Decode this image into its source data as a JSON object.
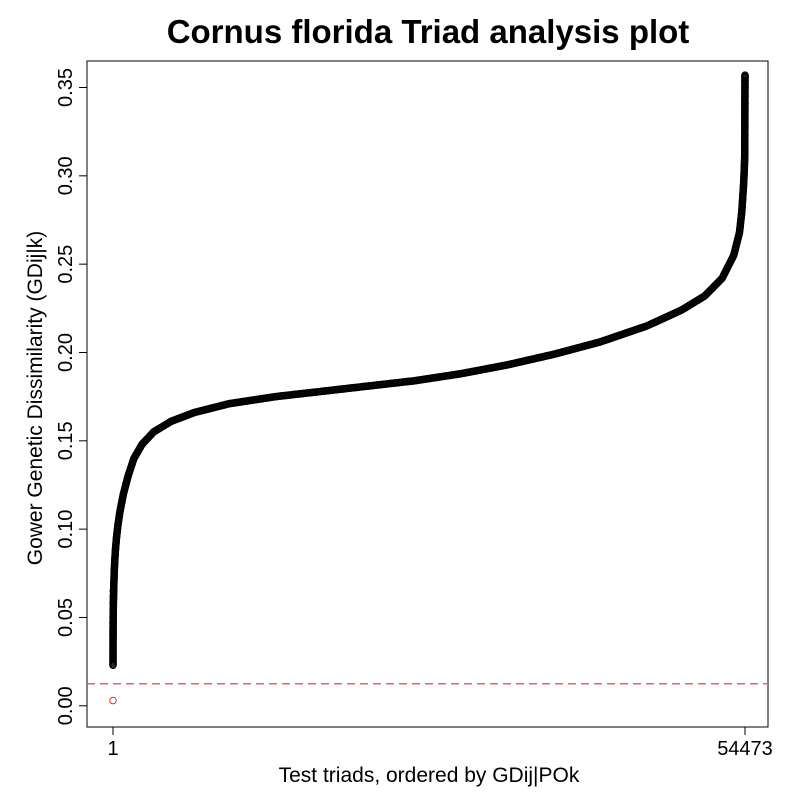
{
  "chart_data": {
    "type": "scatter",
    "title": "Cornus florida Triad analysis plot",
    "xlabel": "Test triads, ordered by GDij|POk",
    "ylabel": "Gower Genetic Dissimilarity (GDij|k)",
    "x_ticks": [
      "1",
      "54473"
    ],
    "x_range": [
      1,
      54473
    ],
    "ylim": [
      -0.012,
      0.365
    ],
    "y_ticks": [
      "0.00",
      "0.05",
      "0.10",
      "0.15",
      "0.20",
      "0.25",
      "0.30",
      "0.35"
    ],
    "threshold": {
      "value": 0.0125,
      "color": "#e06666",
      "style": "dashed"
    },
    "highlighted_point": {
      "x": 1,
      "y": 0.003,
      "color": "#e03030"
    },
    "series_color": "#000000",
    "marker": "open-circle",
    "grid": false,
    "n_points": 54473,
    "curve_points": [
      [
        1,
        0.003
      ],
      [
        2,
        0.023
      ],
      [
        5,
        0.038
      ],
      [
        10,
        0.045
      ],
      [
        20,
        0.052
      ],
      [
        40,
        0.06
      ],
      [
        70,
        0.068
      ],
      [
        110,
        0.076
      ],
      [
        160,
        0.083
      ],
      [
        220,
        0.089
      ],
      [
        300,
        0.095
      ],
      [
        420,
        0.102
      ],
      [
        600,
        0.11
      ],
      [
        900,
        0.12
      ],
      [
        1300,
        0.13
      ],
      [
        1800,
        0.14
      ],
      [
        2500,
        0.148
      ],
      [
        3500,
        0.155
      ],
      [
        5000,
        0.161
      ],
      [
        7000,
        0.166
      ],
      [
        10000,
        0.171
      ],
      [
        14000,
        0.175
      ],
      [
        18000,
        0.178
      ],
      [
        22000,
        0.181
      ],
      [
        26000,
        0.184
      ],
      [
        30000,
        0.188
      ],
      [
        34000,
        0.193
      ],
      [
        38000,
        0.199
      ],
      [
        42000,
        0.206
      ],
      [
        46000,
        0.215
      ],
      [
        49000,
        0.224
      ],
      [
        51000,
        0.232
      ],
      [
        52500,
        0.242
      ],
      [
        53500,
        0.255
      ],
      [
        54000,
        0.268
      ],
      [
        54200,
        0.28
      ],
      [
        54350,
        0.295
      ],
      [
        54420,
        0.305
      ],
      [
        54450,
        0.312
      ],
      [
        54473,
        0.357
      ]
    ],
    "low_outliers": [
      [
        3,
        0.04
      ],
      [
        4,
        0.042
      ],
      [
        6,
        0.047
      ],
      [
        8,
        0.05
      ],
      [
        12,
        0.055
      ],
      [
        15,
        0.058
      ],
      [
        25,
        0.062
      ],
      [
        30,
        0.065
      ]
    ],
    "high_outliers": [
      [
        54455,
        0.316
      ],
      [
        54458,
        0.32
      ],
      [
        54461,
        0.323
      ],
      [
        54463,
        0.328
      ],
      [
        54465,
        0.333
      ],
      [
        54467,
        0.337
      ],
      [
        54468,
        0.341
      ],
      [
        54469,
        0.345
      ],
      [
        54470,
        0.35
      ],
      [
        54471,
        0.354
      ],
      [
        54472,
        0.356
      ]
    ]
  }
}
